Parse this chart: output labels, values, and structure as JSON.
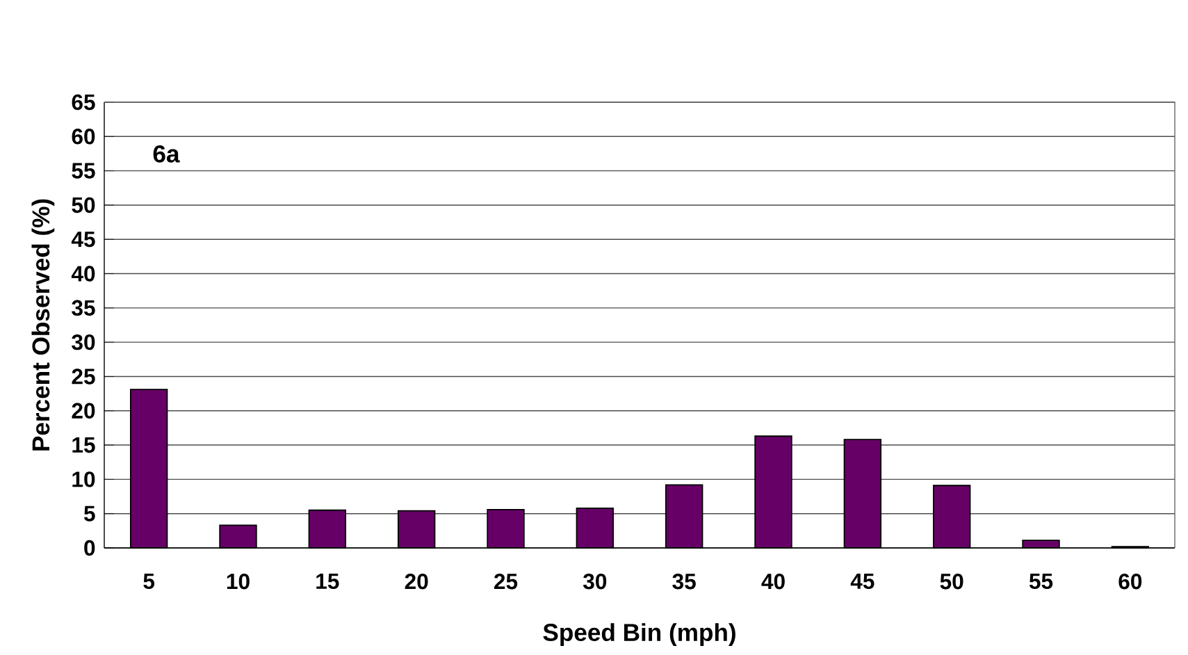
{
  "chart_data": {
    "type": "bar",
    "xlabel": "Speed Bin (mph)",
    "ylabel": "Percent Observed (%)",
    "categories": [
      "5",
      "10",
      "15",
      "20",
      "25",
      "30",
      "35",
      "40",
      "45",
      "50",
      "55",
      "60"
    ],
    "values": [
      23.1,
      3.3,
      5.5,
      5.4,
      5.6,
      5.8,
      9.2,
      16.3,
      15.8,
      9.1,
      1.1,
      0.2
    ],
    "color": "#660066",
    "ylim": [
      0,
      65
    ],
    "yticks": [
      0,
      5,
      10,
      15,
      20,
      25,
      30,
      35,
      40,
      45,
      50,
      55,
      60,
      65
    ],
    "grid": "y",
    "annotations": [
      "6a"
    ]
  }
}
